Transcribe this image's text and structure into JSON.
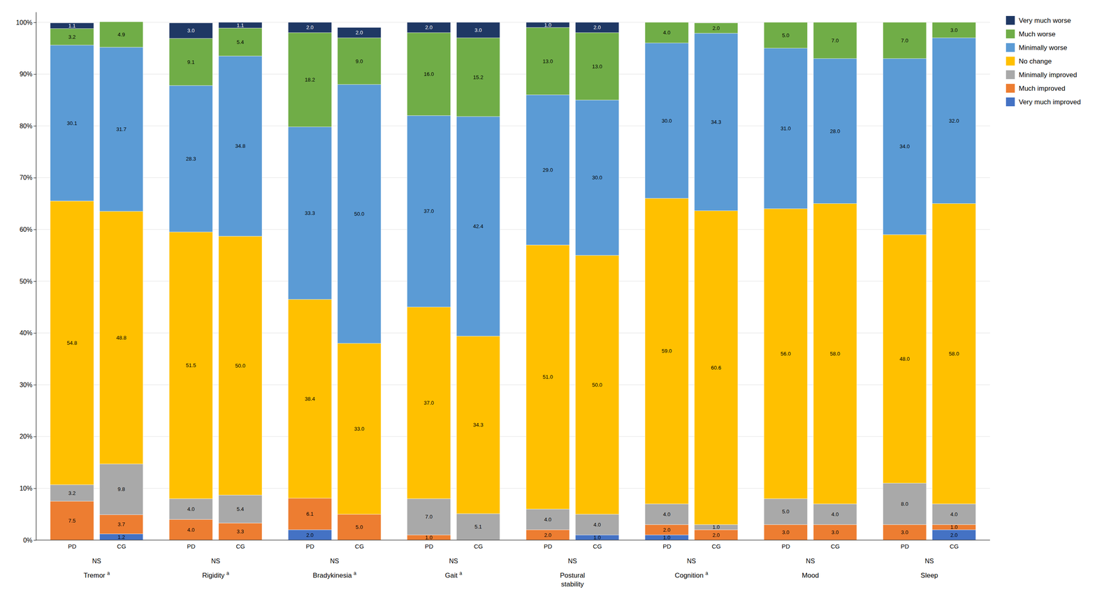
{
  "chart_data": {
    "type": "bar",
    "stacked": true,
    "data_labels": true,
    "grid": true,
    "legend": "right",
    "categories": [
      "PD",
      "CG",
      "PD",
      "CG",
      "PD",
      "CG",
      "PD",
      "CG",
      "PD",
      "CG",
      "PD",
      "CG",
      "PD",
      "CG",
      "PD",
      "CG"
    ],
    "groups": [
      {
        "label": "Tremor a",
        "sublabel": "NS"
      },
      {
        "label": "Rigidity a",
        "sublabel": "NS"
      },
      {
        "label": "Bradykinesia a",
        "sublabel": "NS"
      },
      {
        "label": "Gait a",
        "sublabel": "NS"
      },
      {
        "label": "Postural\nstability",
        "sublabel": "NS"
      },
      {
        "label": "Cognition a",
        "sublabel": "NS"
      },
      {
        "label": "Mood",
        "sublabel": "NS"
      },
      {
        "label": "Sleep",
        "sublabel": "NS"
      }
    ],
    "series": [
      {
        "name": "Very much improved",
        "color": "#4472C4",
        "values": [
          0.0,
          1.2,
          0.0,
          0.0,
          2.0,
          0.0,
          0.0,
          0.0,
          0.0,
          1.0,
          1.0,
          0.0,
          0.0,
          0.0,
          0.0,
          2.0
        ],
        "value_labels": [
          null,
          "1.2",
          null,
          null,
          "2.0",
          null,
          null,
          null,
          null,
          "1.0",
          "1.0",
          null,
          null,
          null,
          null,
          "2.0"
        ]
      },
      {
        "name": "Much improved",
        "color": "#ED7D31",
        "values": [
          7.5,
          3.7,
          4.0,
          3.3,
          6.1,
          5.0,
          1.0,
          0.0,
          2.0,
          0.0,
          2.0,
          2.0,
          3.0,
          3.0,
          3.0,
          1.0
        ],
        "value_labels": [
          "7.5",
          "3.7",
          "4.0",
          "3.3",
          "6.1",
          "5.0",
          "1.0",
          null,
          "2.0",
          null,
          "2.0",
          "2.0",
          "3.0",
          "3.0",
          "3.0",
          "1.0"
        ]
      },
      {
        "name": "Minimally improved",
        "color": "#A9A9A9",
        "values": [
          3.2,
          9.8,
          4.0,
          5.4,
          0.0,
          0.0,
          7.0,
          5.1,
          4.0,
          4.0,
          4.0,
          1.0,
          5.0,
          4.0,
          8.0,
          4.0
        ],
        "value_labels": [
          "3.2",
          "9.8",
          "4.0",
          "5.4",
          null,
          null,
          "7.0",
          "5.1",
          "4.0",
          "4.0",
          "4.0",
          "1.0",
          "5.0",
          "4.0",
          "8.0",
          "4.0"
        ]
      },
      {
        "name": "No change",
        "color": "#FFC000",
        "values": [
          54.8,
          48.8,
          51.5,
          50.0,
          38.4,
          33.0,
          37.0,
          34.3,
          51.0,
          50.0,
          59.0,
          60.6,
          56.0,
          58.0,
          48.0,
          58.0
        ],
        "value_labels": [
          "54.8",
          "48.8",
          "51.5",
          "50.0",
          "38.4",
          "33.0",
          "37.0",
          "34.3",
          "51.0",
          "50.0",
          "59.0",
          "60.6",
          "56.0",
          "58.0",
          "48.0",
          "58.0"
        ]
      },
      {
        "name": "Minimally worse",
        "color": "#5B9BD5",
        "values": [
          30.1,
          31.7,
          28.3,
          34.8,
          33.3,
          50.0,
          37.0,
          42.4,
          29.0,
          30.0,
          30.0,
          34.3,
          31.0,
          28.0,
          34.0,
          32.0
        ],
        "value_labels": [
          "30.1",
          "31.7",
          "28.3",
          "34.8",
          "33.3",
          "50.0",
          "37.0",
          "42.4",
          "29.0",
          "30.0",
          "30.0",
          "34.3",
          "31.0",
          "28.0",
          "34.0",
          "32.0"
        ]
      },
      {
        "name": "Much worse",
        "color": "#70AD47",
        "values": [
          3.2,
          4.9,
          9.1,
          5.4,
          18.2,
          9.0,
          16.0,
          15.2,
          13.0,
          13.0,
          4.0,
          2.0,
          5.0,
          7.0,
          7.0,
          3.0
        ],
        "value_labels": [
          "3.2",
          "4.9",
          "9.1",
          "5.4",
          "18.2",
          "9.0",
          "16.0",
          "15.2",
          "13.0",
          "13.0",
          "4.0",
          "2.0",
          "5.0",
          "7.0",
          "7.0",
          "3.0"
        ]
      },
      {
        "name": "Very much worse",
        "color": "#1F3864",
        "values": [
          1.1,
          0.0,
          3.0,
          1.1,
          2.0,
          2.0,
          2.0,
          3.0,
          1.0,
          2.0,
          0.0,
          0.0,
          0.0,
          0.0,
          0.0,
          0.0
        ],
        "value_labels": [
          "1.1",
          null,
          "3.0",
          "1.1",
          "2.0",
          "2.0",
          "2.0",
          "3.0",
          "1.0",
          "2.0",
          null,
          null,
          null,
          null,
          null,
          null
        ]
      }
    ],
    "ylim": [
      0,
      102
    ],
    "yticks": [
      {
        "value": 0,
        "label": "0%"
      },
      {
        "value": 10,
        "label": "10%"
      },
      {
        "value": 20,
        "label": "20%"
      },
      {
        "value": 30,
        "label": "30%"
      },
      {
        "value": 40,
        "label": "40%"
      },
      {
        "value": 50,
        "label": "50%"
      },
      {
        "value": 60,
        "label": "60%"
      },
      {
        "value": 70,
        "label": "70%"
      },
      {
        "value": 80,
        "label": "80%"
      },
      {
        "value": 90,
        "label": "90%"
      },
      {
        "value": 100,
        "label": "100%"
      }
    ]
  }
}
